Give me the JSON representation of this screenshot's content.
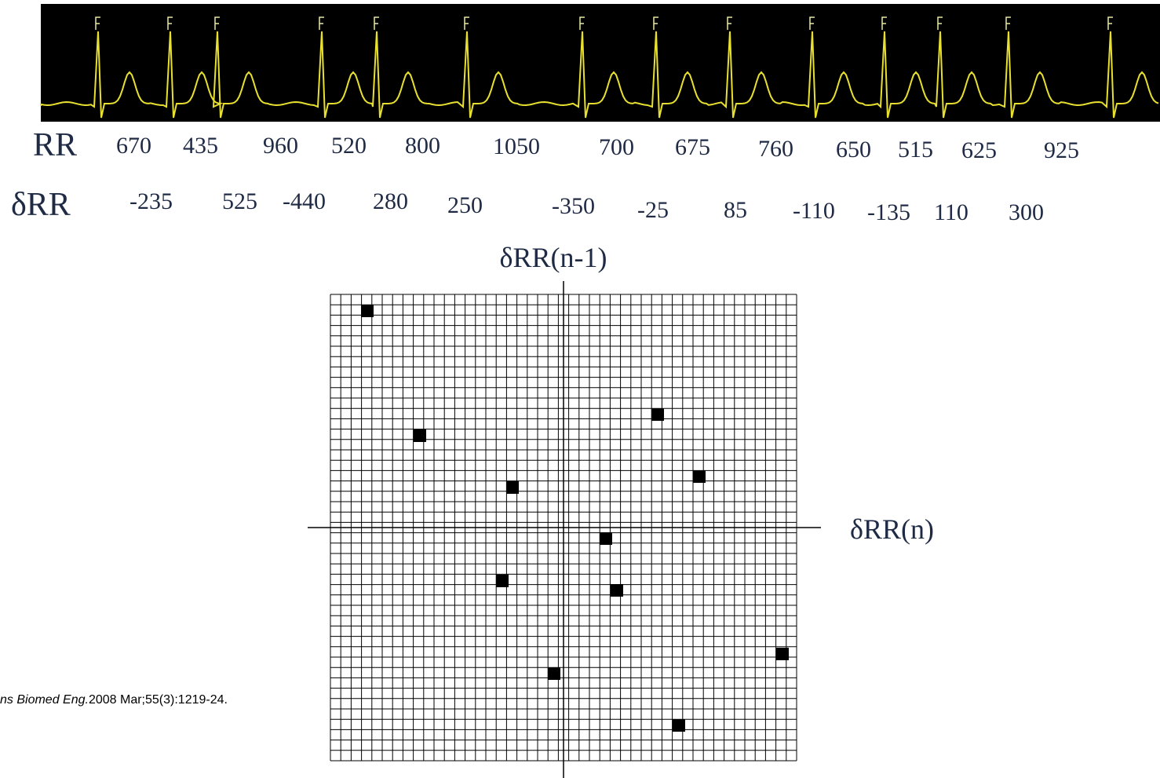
{
  "rr_row": {
    "label": "RR",
    "values": [
      670,
      435,
      960,
      520,
      800,
      1050,
      700,
      675,
      760,
      650,
      515,
      625,
      925
    ]
  },
  "drr_row": {
    "label": "δRR",
    "values": [
      -235,
      525,
      -440,
      280,
      250,
      -350,
      -25,
      85,
      -110,
      -135,
      110,
      300
    ]
  },
  "plot": {
    "type": "scatter",
    "x_label": "δRR(n)",
    "y_label": "δRR(n-1)",
    "xlim": [
      -297,
      297
    ],
    "ylim": [
      -297,
      297
    ],
    "x": [
      -250,
      -183,
      -65,
      120,
      173,
      54,
      -78,
      68,
      -12,
      279,
      147
    ],
    "y": [
      276,
      117,
      51,
      144,
      65,
      -14,
      -68,
      -80,
      -186,
      -161,
      -252
    ]
  },
  "citation": {
    "journal": "ns Biomed Eng.",
    "details": "2008 Mar;55(3):1219-24."
  }
}
